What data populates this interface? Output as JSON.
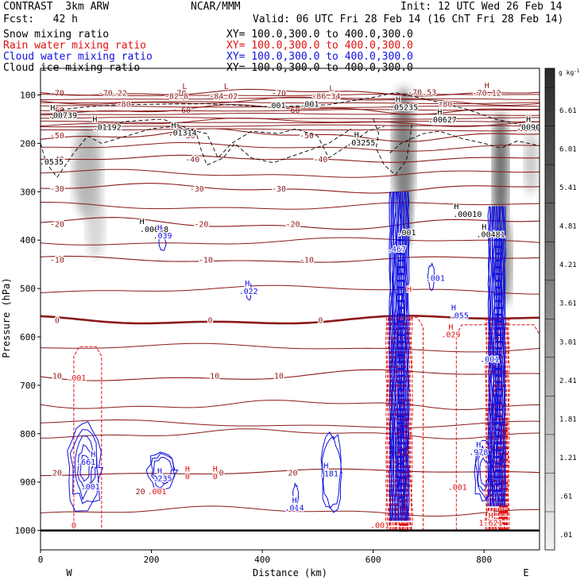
{
  "header": {
    "model": "CONTRAST  3km ARW",
    "org": "NCAR/MMM",
    "init": "Init: 12 UTC Wed 26 Feb 14",
    "fcst": "Fcst:   42 h",
    "valid": "Valid: 06 UTC Fri 28 Feb 14 (16 ChT Fri 28 Feb 14)",
    "fields": [
      {
        "label": "Snow mixing ratio",
        "color": "#000000",
        "xsec": "XY= 100.0,300.0 to 400.0,300.0"
      },
      {
        "label": "Rain water mixing ratio",
        "color": "#e01010",
        "xsec": "XY= 100.0,300.0 to 400.0,300.0"
      },
      {
        "label": "Cloud water mixing ratio",
        "color": "#1010e0",
        "xsec": "XY= 100.0,300.0 to 400.0,300.0"
      },
      {
        "label": "Cloud ice mixing ratio",
        "color": "#000000",
        "xsec": "XY= 100.0,300.0 to 400.0,300.0"
      }
    ]
  },
  "chart_data": {
    "type": "contour",
    "xlabel": "Distance (km)",
    "ylabel": "Pressure (hPa)",
    "xlim": [
      0,
      900
    ],
    "ylim": [
      1040,
      45
    ],
    "xticks": [
      0,
      200,
      400,
      600,
      800
    ],
    "yticks": [
      100,
      200,
      300,
      400,
      500,
      600,
      700,
      800,
      900,
      1000
    ],
    "x_end_labels": {
      "left": "W",
      "right": "E"
    },
    "colorbar": {
      "unit": "g kg",
      "unit_exp": "-1",
      "labels": [
        "6.61",
        "6.01",
        "5.41",
        "4.81",
        "4.21",
        "3.61",
        "3.01",
        "2.41",
        "1.81",
        "1.21",
        ".61",
        ".01"
      ]
    },
    "temperature_isotherms": [
      {
        "label": "-70",
        "value": -70,
        "p": 95
      },
      {
        "label": "-60",
        "value": -60,
        "p": 130
      },
      {
        "label": "-50",
        "value": -50,
        "p": 183
      },
      {
        "label": "-40",
        "value": -40,
        "p": 232
      },
      {
        "label": "-30",
        "value": -30,
        "p": 293
      },
      {
        "label": "-20",
        "value": -20,
        "p": 366
      },
      {
        "label": "-10",
        "value": -10,
        "p": 440
      },
      {
        "label": "0",
        "value": 0,
        "p": 565
      },
      {
        "label": "10",
        "value": 10,
        "p": 680
      },
      {
        "label": "20",
        "value": 20,
        "p": 880
      }
    ],
    "annotations": [
      {
        "text": "-70.22",
        "x": 130,
        "p": 102,
        "color": "#8b1a1a"
      },
      {
        "text": "L",
        "x": 260,
        "p": 88,
        "color": "#8b1a1a"
      },
      {
        "text": "-82.8",
        "x": 245,
        "p": 108,
        "color": "#8b1a1a"
      },
      {
        "text": "L",
        "x": 335,
        "p": 88,
        "color": "#8b1a1a"
      },
      {
        "text": "-84.02",
        "x": 330,
        "p": 108,
        "color": "#8b1a1a"
      },
      {
        "text": "L",
        "x": 525,
        "p": 92,
        "color": "#8b1a1a"
      },
      {
        "text": "-86.34",
        "x": 515,
        "p": 108,
        "color": "#8b1a1a"
      },
      {
        "text": "-70.53",
        "x": 688,
        "p": 100,
        "color": "#8b1a1a"
      },
      {
        "text": "H",
        "x": 805,
        "p": 86,
        "color": "#8b1a1a"
      },
      {
        "text": "-70.12",
        "x": 805,
        "p": 102,
        "color": "#8b1a1a"
      },
      {
        "text": "-80",
        "x": 150,
        "p": 125,
        "color": "#8b1a1a"
      },
      {
        "text": "-80",
        "x": 730,
        "p": 125,
        "color": "#8b1a1a"
      },
      {
        "text": ".001",
        "x": 425,
        "p": 127,
        "color": "#000000"
      },
      {
        "text": ".001",
        "x": 485,
        "p": 125,
        "color": "#000000"
      },
      {
        "text": "H",
        "x": 22,
        "p": 132,
        "color": "#000000"
      },
      {
        "text": ".00739",
        "x": 40,
        "p": 148,
        "color": "#000000"
      },
      {
        "text": "H",
        "x": 98,
        "p": 156,
        "color": "#000000"
      },
      {
        "text": ".01192",
        "x": 120,
        "p": 172,
        "color": "#000000"
      },
      {
        "text": "H",
        "x": 240,
        "p": 168,
        "color": "#000000"
      },
      {
        "text": ".01314",
        "x": 256,
        "p": 184,
        "color": "#000000"
      },
      {
        "text": "H",
        "x": 645,
        "p": 115,
        "color": "#000000"
      },
      {
        "text": ".05235",
        "x": 655,
        "p": 131,
        "color": "#000000"
      },
      {
        "text": "H",
        "x": 720,
        "p": 141,
        "color": "#000000"
      },
      {
        "text": ".00627",
        "x": 725,
        "p": 157,
        "color": "#000000"
      },
      {
        "text": "H",
        "x": 880,
        "p": 156,
        "color": "#000000"
      },
      {
        "text": ".0090",
        "x": 880,
        "p": 172,
        "color": "#000000"
      },
      {
        "text": "H",
        "x": 570,
        "p": 188,
        "color": "#000000"
      },
      {
        "text": ".03255",
        "x": 578,
        "p": 204,
        "color": "#000000"
      },
      {
        "text": ".0535",
        "x": 20,
        "p": 244,
        "color": "#000000"
      },
      {
        "text": "H",
        "x": 183,
        "p": 367,
        "color": "#000000"
      },
      {
        "text": ".00038",
        "x": 205,
        "p": 383,
        "color": "#000000"
      },
      {
        "text": "H",
        "x": 750,
        "p": 336,
        "color": "#000000"
      },
      {
        "text": ".00010",
        "x": 770,
        "p": 352,
        "color": "#000000"
      },
      {
        "text": "H",
        "x": 800,
        "p": 378,
        "color": "#000000"
      },
      {
        "text": ".00481",
        "x": 812,
        "p": 394,
        "color": "#000000"
      },
      {
        "text": ".001",
        "x": 660,
        "p": 390,
        "color": "#000000"
      },
      {
        "text": "H",
        "x": 215,
        "p": 380,
        "color": "#1010e0"
      },
      {
        "text": ".039",
        "x": 220,
        "p": 396,
        "color": "#1010e0"
      },
      {
        "text": ".467",
        "x": 642,
        "p": 424,
        "color": "#1010e0"
      },
      {
        "text": ".001",
        "x": 712,
        "p": 484,
        "color": "#1010e0"
      },
      {
        "text": "H",
        "x": 373,
        "p": 495,
        "color": "#1010e0"
      },
      {
        "text": ".022",
        "x": 375,
        "p": 511,
        "color": "#1010e0"
      },
      {
        "text": "H",
        "x": 745,
        "p": 545,
        "color": "#1010e0"
      },
      {
        "text": ".055",
        "x": 755,
        "p": 561,
        "color": "#1010e0"
      },
      {
        "text": "H",
        "x": 665,
        "p": 507,
        "color": "#e01010"
      },
      {
        "text": "H",
        "x": 740,
        "p": 585,
        "color": "#e01010"
      },
      {
        "text": ".029",
        "x": 740,
        "p": 601,
        "color": "#e01010"
      },
      {
        "text": ".001",
        "x": 65,
        "p": 690,
        "color": "#e01010"
      },
      {
        "text": ".001",
        "x": 810,
        "p": 652,
        "color": "#1010e0"
      },
      {
        "text": "H",
        "x": 95,
        "p": 848,
        "color": "#1010e0"
      },
      {
        "text": ".661",
        "x": 82,
        "p": 864,
        "color": "#1010e0"
      },
      {
        "text": ".001",
        "x": 90,
        "p": 915,
        "color": "#1010e0"
      },
      {
        "text": "H",
        "x": 215,
        "p": 882,
        "color": "#1010e0"
      },
      {
        "text": ".235",
        "x": 220,
        "p": 898,
        "color": "#1010e0"
      },
      {
        "text": ".001",
        "x": 210,
        "p": 925,
        "color": "#e01010"
      },
      {
        "text": "H",
        "x": 265,
        "p": 878,
        "color": "#e01010"
      },
      {
        "text": "0",
        "x": 265,
        "p": 894,
        "color": "#e01010"
      },
      {
        "text": "H",
        "x": 315,
        "p": 878,
        "color": "#e01010"
      },
      {
        "text": "0",
        "x": 315,
        "p": 894,
        "color": "#e01010"
      },
      {
        "text": "H",
        "x": 515,
        "p": 872,
        "color": "#1010e0"
      },
      {
        "text": ".181",
        "x": 520,
        "p": 888,
        "color": "#1010e0"
      },
      {
        "text": "H",
        "x": 458,
        "p": 943,
        "color": "#1010e0"
      },
      {
        "text": ".014",
        "x": 458,
        "p": 959,
        "color": "#1010e0"
      },
      {
        "text": "H",
        "x": 790,
        "p": 828,
        "color": "#1010e0"
      },
      {
        "text": ".978",
        "x": 790,
        "p": 844,
        "color": "#1010e0"
      },
      {
        "text": ".001",
        "x": 752,
        "p": 916,
        "color": "#e01010"
      },
      {
        "text": "H",
        "x": 812,
        "p": 974,
        "color": "#e01010"
      },
      {
        "text": "1.621",
        "x": 812,
        "p": 990,
        "color": "#e01010"
      },
      {
        "text": ".001",
        "x": 612,
        "p": 995,
        "color": "#e01010"
      },
      {
        "text": "0",
        "x": 60,
        "p": 995,
        "color": "#e01010"
      },
      {
        "text": "20",
        "x": 180,
        "p": 925,
        "color": "#8b1a1a"
      }
    ]
  }
}
